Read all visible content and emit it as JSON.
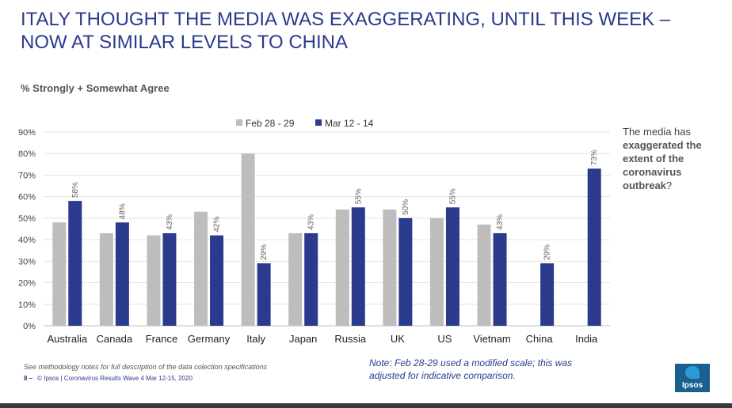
{
  "title": "ITALY THOUGHT THE MEDIA WAS EXAGGERATING, UNTIL THIS WEEK – NOW AT SIMILAR LEVELS TO CHINA",
  "subtitle": "% Strongly + Somewhat Agree",
  "side_note": {
    "pre": "The media has ",
    "bold": "exaggerated the extent of the coronavirus outbreak",
    "post": "?"
  },
  "methodology": "See methodology notes for full description of the data colection specifications",
  "footer": {
    "page": "8 –",
    "text": "© Ipsos | Coronavirus Results Wave 4 Mar 12-15, 2020"
  },
  "note": "Note: Feb 28-29 used a modified scale; this was adjusted for indicative comparison.",
  "logo_text": "Ipsos",
  "colors": {
    "title": "#2b3a8c",
    "series1": "#bdbdbd",
    "series2": "#2b3a8c"
  },
  "chart_data": {
    "type": "bar",
    "categories": [
      "Australia",
      "Canada",
      "France",
      "Germany",
      "Italy",
      "Japan",
      "Russia",
      "UK",
      "US",
      "Vietnam",
      "China",
      "India"
    ],
    "series": [
      {
        "name": "Feb 28 - 29",
        "values": [
          48,
          43,
          42,
          53,
          80,
          43,
          54,
          54,
          50,
          47,
          null,
          null
        ],
        "color": "#bdbdbd"
      },
      {
        "name": "Mar 12 - 14",
        "values": [
          58,
          48,
          43,
          42,
          29,
          43,
          55,
          50,
          55,
          43,
          29,
          73
        ],
        "color": "#2b3a8c",
        "labels": [
          "58%",
          "48%",
          "43%",
          "42%",
          "29%",
          "43%",
          "55%",
          "50%",
          "55%",
          "43%",
          "29%",
          "73%"
        ]
      }
    ],
    "yticks": [
      "0%",
      "10%",
      "20%",
      "30%",
      "40%",
      "50%",
      "60%",
      "70%",
      "80%",
      "90%"
    ],
    "ylim": [
      0,
      90
    ],
    "grid": true,
    "legend": "top"
  }
}
